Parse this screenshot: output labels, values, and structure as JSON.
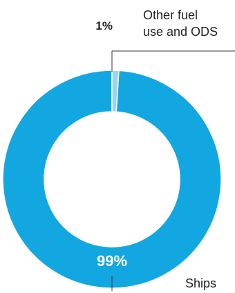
{
  "chart_data": {
    "type": "pie",
    "variant": "donut",
    "slices": [
      {
        "name": "Ships",
        "value": 99,
        "label": "99%",
        "color": "#12a7e0"
      },
      {
        "name": "Other fuel use and ODS",
        "value": 1,
        "label": "1%",
        "color": "#9bd4f0"
      }
    ],
    "labels": {
      "ships": "Ships",
      "other_line1": "Other fuel",
      "other_line2": "use and ODS"
    }
  }
}
